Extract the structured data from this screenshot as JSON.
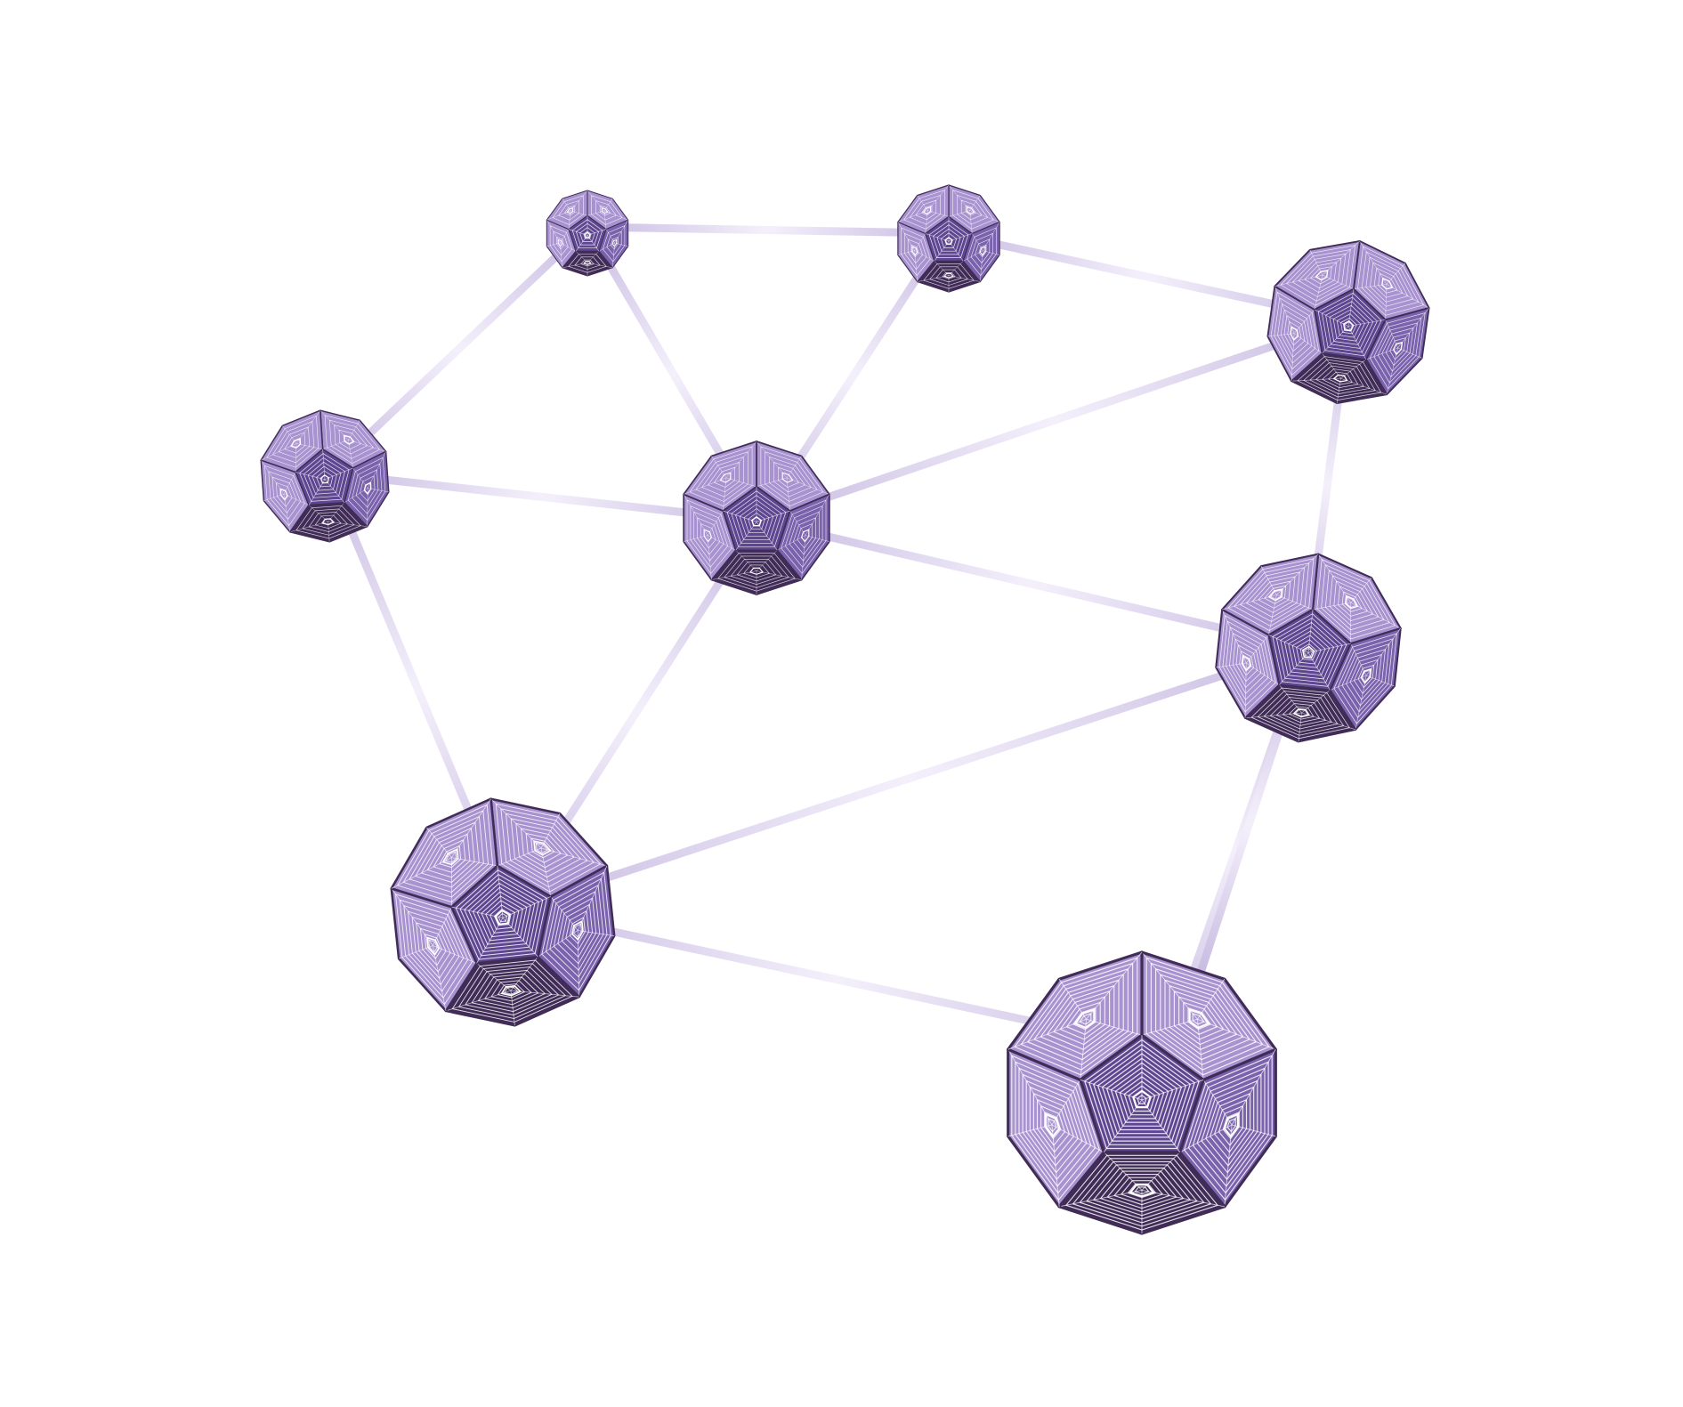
{
  "diagram": {
    "type": "network",
    "nodes": [
      {
        "id": "n1"
      },
      {
        "id": "n2"
      },
      {
        "id": "n3"
      },
      {
        "id": "n4"
      },
      {
        "id": "n5"
      },
      {
        "id": "n6"
      },
      {
        "id": "n7"
      },
      {
        "id": "n8"
      },
      {
        "id": "n9"
      }
    ],
    "edges": [
      [
        "n1",
        "n2"
      ],
      [
        "n1",
        "n4"
      ],
      [
        "n1",
        "n5"
      ],
      [
        "n2",
        "n5"
      ],
      [
        "n2",
        "n3"
      ],
      [
        "n3",
        "n5"
      ],
      [
        "n3",
        "n6"
      ],
      [
        "n4",
        "n5"
      ],
      [
        "n4",
        "n7"
      ],
      [
        "n5",
        "n6"
      ],
      [
        "n5",
        "n7"
      ],
      [
        "n6",
        "n7"
      ],
      [
        "n6",
        "n8"
      ],
      [
        "n7",
        "n8"
      ],
      [
        "n6",
        "n9"
      ]
    ]
  },
  "colors": {
    "edge_light": "#f4f0fb",
    "edge_mid": "#c9bce2",
    "face_center": "#5f4691",
    "face_light": "#a892d0",
    "face_mid": "#7b62ad",
    "face_dark": "#402c57",
    "pattern_line": "#ffffff"
  }
}
